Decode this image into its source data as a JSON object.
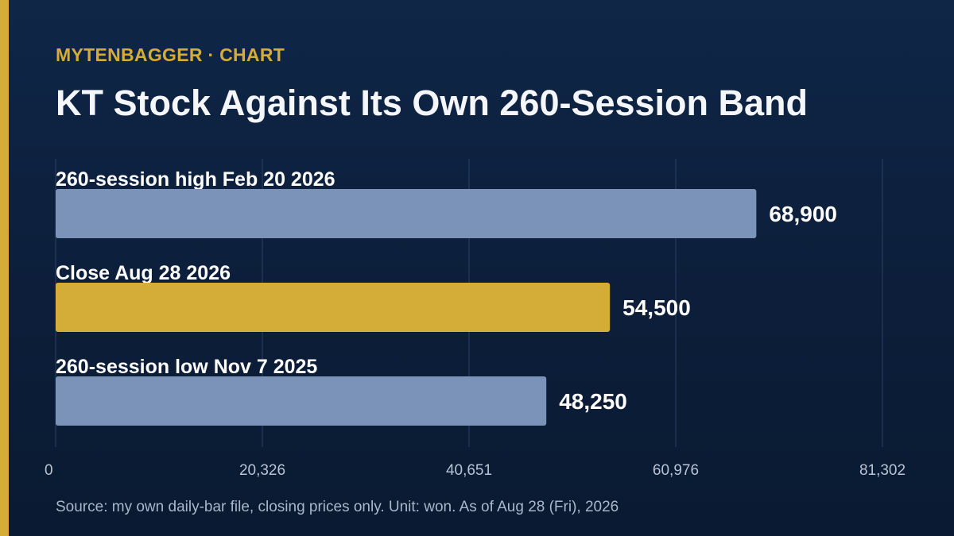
{
  "header": {
    "brand": "MYTENBAGGER · CHART",
    "title": "KT Stock Against Its Own 260-Session Band"
  },
  "footer": {
    "source": "Source: my own daily-bar file, closing prices only. Unit: won. As of Aug 28 (Fri), 2026"
  },
  "colors": {
    "accent": "#d4ad38",
    "bar_default": "#7b93b8",
    "bar_highlight": "#d4ad38",
    "gridline": "#2b4262",
    "tick_text": "#b8c3d4"
  },
  "chart_data": {
    "type": "bar",
    "orientation": "horizontal",
    "title": "KT Stock Against Its Own 260-Session Band",
    "xlabel": "",
    "ylabel": "",
    "unit": "won",
    "grid": true,
    "categories": [
      "260-session high Feb 20 2026",
      "Close Aug 28 2026",
      "260-session low Nov 7 2025"
    ],
    "values": [
      68900,
      54500,
      48250
    ],
    "value_labels": [
      "68,900",
      "54,500",
      "48,250"
    ],
    "highlight_index": 1,
    "xlim": [
      0,
      81302
    ],
    "xticks": [
      0,
      20326,
      40651,
      60976,
      81302
    ],
    "xtick_labels": [
      "0",
      "20,326",
      "40,651",
      "60,976",
      "81,302"
    ]
  }
}
